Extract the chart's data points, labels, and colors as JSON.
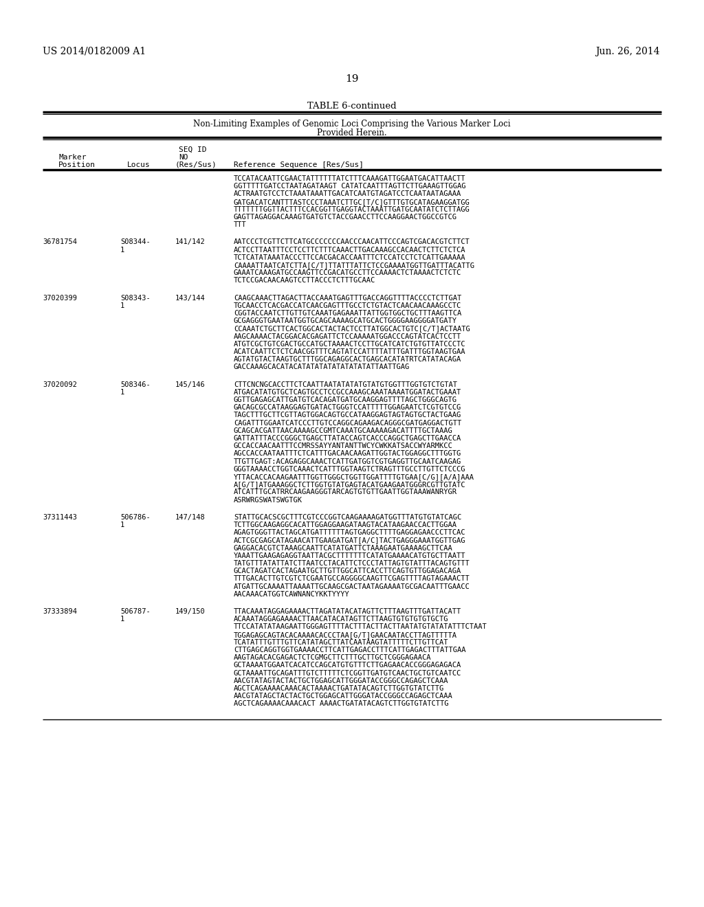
{
  "patent_left": "US 2014/0182009 A1",
  "patent_right": "Jun. 26, 2014",
  "page_number": "19",
  "table_title": "TABLE 6-continued",
  "table_subtitle1": "Non-Limiting Examples of Genomic Loci Comprising the Various Marker Loci",
  "table_subtitle2": "Provided Herein.",
  "background_color": "#ffffff",
  "text_color": "#000000",
  "rows": [
    {
      "position": "",
      "locus": "",
      "res_sus": "",
      "sequence": [
        "TCCATACAATTCGAACTATTTTTTATCTTTCAAAGATTGGAATGACATTAACTT",
        "GGTTTTTGATCCTAATAGATAAGT CATATCAATTTAGTTCTTGAAAGTTGGAG",
        "ACTRAATGTCCTCTAAATAAATTGACATCAATGTAGATCCTCAATAATAGAAA",
        "GATGACATCANTTTASTCCCTAAATCTTGC[T/C]GTTTGTGCATAGAAGGATGG",
        "TTTTTTTGGTTACTTTCCACGGTTGAGGTACTAAATTGATGCAATATCTCTTAGG",
        "GAGTTAGAGGACAAAGTGATGTCTACCGAACCTTCCAAGGAACTGGCCGTCG",
        "TTT"
      ]
    },
    {
      "position": "36781754",
      "locus": [
        "S08344-",
        "1"
      ],
      "res_sus": "141/142",
      "sequence": [
        "AATCCCTCGTTCTTCATGCCCCCCCAACCCAACATTCCCAGTCGACACGTCTTCT",
        "ACTCCTTAATTTCCTCCTTCTTTCAAACTTGACAAAGCCACAACTCTTCTCTCA",
        "TCTCATATAAATACCCTTCCACGACACCAATTTCTCCATCCTCTCATTGAAAAA",
        "CAAAATTAATCATCTTA[C/T]TTATTTATTCTCCGAAAATGGTTGATTTACATTG",
        "GAAATCAAAGATGCCAAGTTCCGACATGCCTTCCAAAACTCTAAAACTCTCTC",
        "TCTCCGACAACAAGTCCTTACCCTCTTTGCAAC"
      ]
    },
    {
      "position": "37020399",
      "locus": [
        "S08343-",
        "1"
      ],
      "res_sus": "143/144",
      "sequence": [
        "CAAGCAAACTTAGACTTACCAAATGAGTTTGACCAGGTTTTACCCCTCTTGAT",
        "TGCAACCTCACGACCATCAACGAGTTTGCCTCTGTACTCAACAACAAAGCCTC",
        "CGGTACCAATCTTGTTGTCAAATGAGAAATTATTGGTGGCTGCTTTAAGTTCA",
        "GCGAGGGTGAATAATGGTGCAGCAAAAGCATGCACTGGGGAAGGGGATGATY",
        "CCAAATCTGCTTCACTGGCACTACTACTCCTTATGGCACTGTC[C/T]ACTAATG",
        "AAGCAAAACTACGGACACGAGATTCTCCAAAAATGGACCCAGTATCACTCCTT",
        "ATGTCGCTGTCGACTGCCATGCTAAAACTCCTTGCATCATCTGTGTTATCCCTC",
        "ACATCAATTCTCTCAACGGTTTCAGTATCCATTTTATTTGATTTGGTAAGTGAA",
        "AGTATGTACTAAGTGCTTTGGCAGAGGCACTGAGCACATATRTCATATACAGA",
        "GACCAAAGCACATACATATATATATATATATATTAATTGAG"
      ]
    },
    {
      "position": "37020092",
      "locus": [
        "508346-",
        "1"
      ],
      "res_sus": "145/146",
      "sequence": [
        "CTTCNCNGCACCTTCTCAATTAATATATATGTATGTGGTTTGGTGTCTGTAT",
        "ATGACATATGTGCTCAGTGCCTCCGCCAAAGCAAATAAAATGGATACTGAAAT",
        "GGTTGAGAGCATTGATGTCACAGATGATGCAAGGAGTTTTAGCTGGGCAGTG",
        "GACAGCGCCATAAGGAGTGATACTGGGTCCATTTTTGGAGAATCTCGTGTCCG",
        "TAGCTTTGCTTCGTTAGTGGACAGTGCCATAAGGAGTAGTAGTGCTACTGAAG",
        "CAGATTTGGAATCATCCCTTGTCCAGGCAGAAGACAGGGCGATGAGGACTGTT",
        "GCAGCACGATTAACAAAAGCCGMTCAAATGCAAAAAGACATTTTGCTAAAG",
        "GATTATTTACCCGGGCTGAGCTTATACCAGTCACCCAGGCTGAGCTTGAACCA",
        "GCCACCAACAATTTCCMRSSAYYANTANTTWCYCWKKATSACCWYARMKCC",
        "AGCCACCAATAATTTCTCATTTGACAACAAGATTGGTACTGGAGGCTTTGGTG",
        "TTGTTGAGT:ACAGAGGCAAACTCATTGATGGTCGTGAGGTTGCAATCAAGAG",
        "GGGTAAAACCTGGTCAAACTCATTTGGTAAGTCTRAGTTTGCCTTGTTCTCCCG",
        "YTTACACCACAAGAATTTGGTTGGGCTGGTTGGATTTTGTGAA[C/G][A/A]AAA",
        "A[G/T]ATGAAAGGCTCTTGGTGTATGAGTACATGAAGAATGGGRCGTTGTATC",
        "ATCATTTGCATRRCAAGAAGGGTARCAGTGTGTTGAATTGGTAAAWANRYGR",
        "ASRWRGSWATSWGTGK"
      ]
    },
    {
      "position": "37311443",
      "locus": [
        "506786-",
        "1"
      ],
      "res_sus": "147/148",
      "sequence": [
        "STATTGCACSCGCTTTCGTCCCGGTCAAGAAAAGATGGTTTATGTGTATCAGC",
        "TCTTGGCAAGAGGCACATTGGAGGAAGATAAGTACATAAGAACCACTTGGAA",
        "AGAGTGGGTTACTAGCATGATTTTTTAGTGAGGCTTTTGAGGAGAACCCTTCAC",
        "ACTCGCGAGCATAGAACATTGAAGATGAT[A/C]TACTGAGGGAAATGGTTGAG",
        "GAGGACACGTCTAAAGCAATTCATATGATTCTAAAGAATGAAAAGCTTCAA",
        "YAAATTGAAGAGAGGTAATTACGCTTTTTTTCATATGAAAACATGTGCTTAATT",
        "TATGTTTATATTATCTTAATCCTACATTCTCCCTATTAGTGTATTTACAGTGTTT",
        "GCACTAGATCACTAGAATGCTTGTTGGCATTCACCTTCAGTGTTGGAGACAGA",
        "TTTGACACTTGTCGTCTCGAATGCCAGGGGCAAGTTCGAGTTTTAGTAGAAACTT",
        "ATGATTGCAAAATTAAAATTGCAAGCGACTAATAGAAAATGCGACAATTTGAACC",
        "AACAAACATGGTCAWNANCYKKTYYYY"
      ]
    },
    {
      "position": "37333894",
      "locus": [
        "506787-",
        "1"
      ],
      "res_sus": "149/150",
      "sequence": [
        "TTACAAATAGGAGAAAACTTAGATATACATAGTTCTTTAAGTTTGATTACATT",
        "ACAAATAGGAGAAAACTTAACATACATAGTTCTTAAGTGTGTGTGTGCTG",
        "TTCCATATATAAGAATTGGGAGTTTTACTTTACTTACTTAATATGTATATATTTCTAAT",
        "TGGAGAGCAGTACACAAAACACCCTAA[G/T]GAACAATACCTTAGTTTTTA",
        "TCATATTTGTTTGTTCATATAGCTTATCAATAAGTATTTTTCTTGTTCAT",
        "CTTGAGCAGGTGGTGAAAACCTTCATTGAGACCTTTCATTGAGACTTTATTGAA",
        "AAGTAGACACGAGACTCTCGMGCTTCTTTGCTTGCTCGGGAGAACA",
        "GCTAAAATGGAATCACATCCAGCATGTGTTTCTTGAGAACACCGGGAGAGACA",
        "GCTAAAATTGCAGATTTGTCTTTTTCTCGGTTGATGTCAACTGCTGTCAATCC",
        "AACGTATAGTACTACTGCTGGAGCATTGGGATACCGGGCCAGAGCTCAAA",
        "AGCTCAGAAAACAAACACTAAAACTGATATACAGTCTTGGTGTATCTTG",
        "AACGTATAGCTACTACTGCTGGAGCATTGGGATACCGGGCCAGAGCTCAAA",
        "AGCTCAGAAAACAAACACT AAAACTGATATACAGTCTTGGTGTATCTTG"
      ]
    }
  ]
}
